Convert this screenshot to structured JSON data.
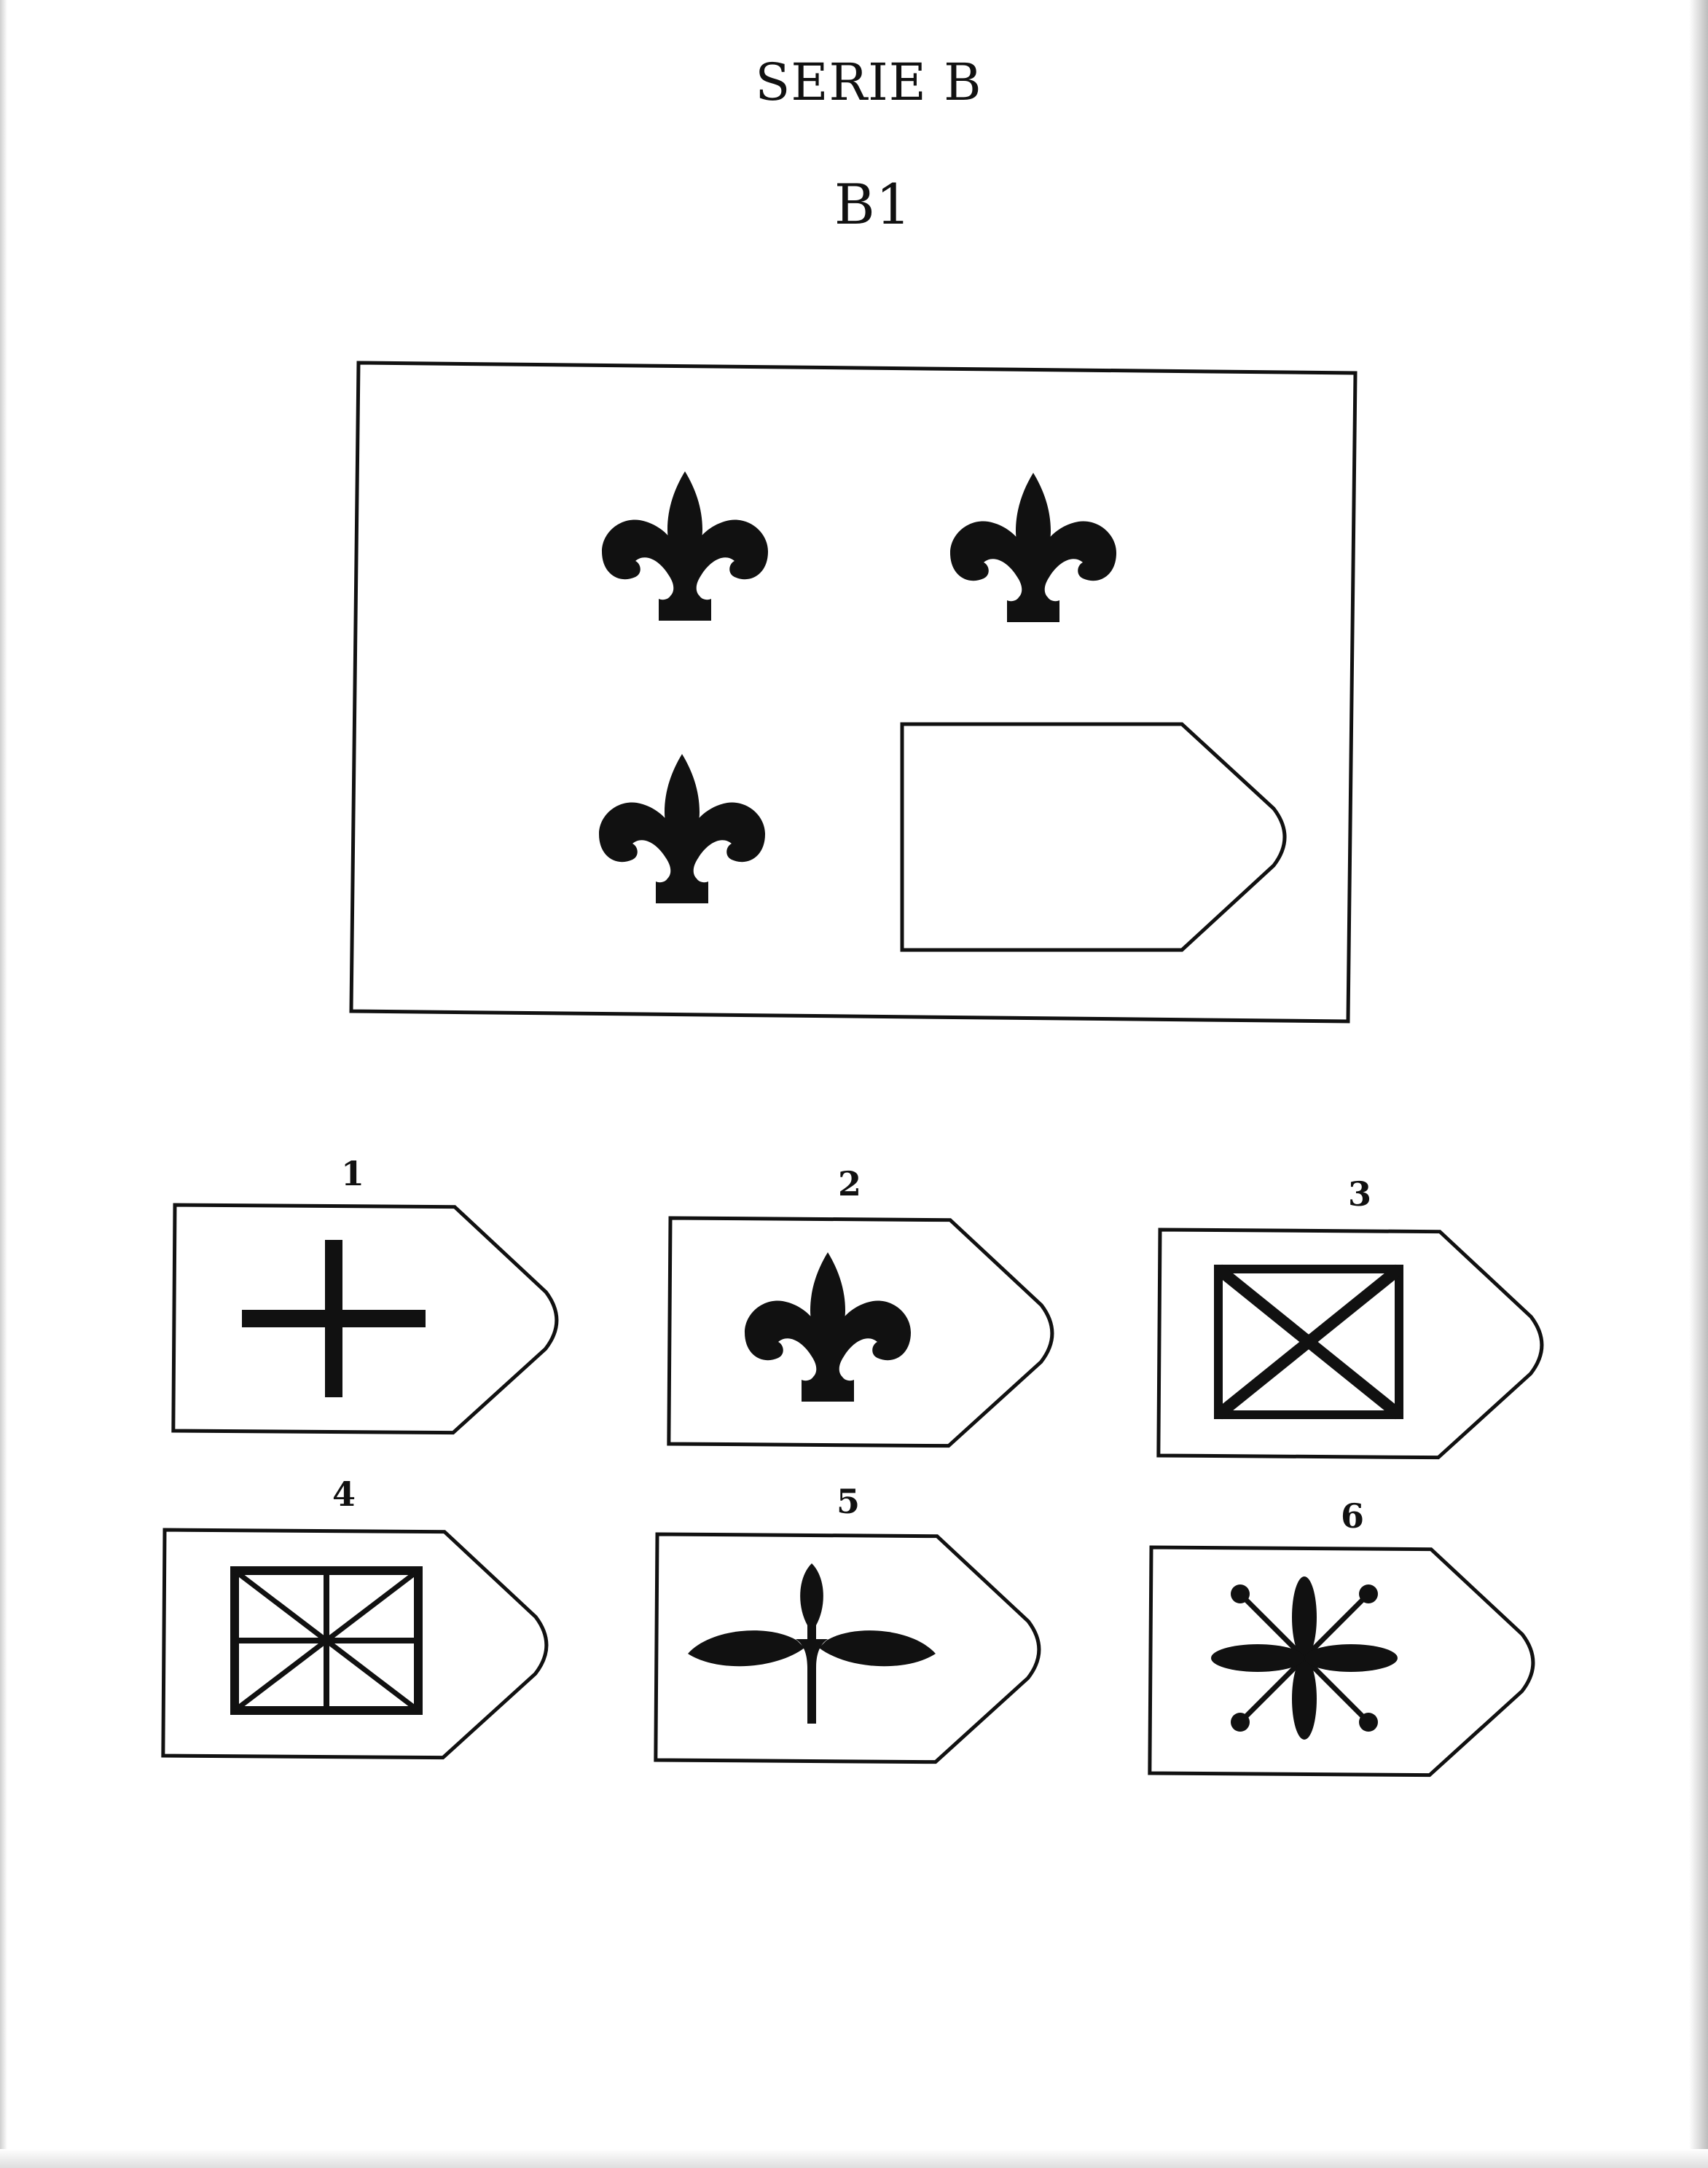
{
  "page": {
    "series_title": "SERIE B",
    "item_title": "B1"
  },
  "problem": {
    "cells": [
      {
        "content": "fleur-de-lis-icon"
      },
      {
        "content": "fleur-de-lis-icon"
      },
      {
        "content": "fleur-de-lis-icon"
      },
      {
        "content": "empty"
      }
    ]
  },
  "options": [
    {
      "number": "1",
      "icon": "cross-icon"
    },
    {
      "number": "2",
      "icon": "fleur-de-lis-icon"
    },
    {
      "number": "3",
      "icon": "boxed-x-icon"
    },
    {
      "number": "4",
      "icon": "union-jack-icon"
    },
    {
      "number": "5",
      "icon": "three-leaf-sprout-icon"
    },
    {
      "number": "6",
      "icon": "four-petal-flower-icon"
    }
  ],
  "colors": {
    "ink": "#111111",
    "paper": "#ffffff"
  }
}
